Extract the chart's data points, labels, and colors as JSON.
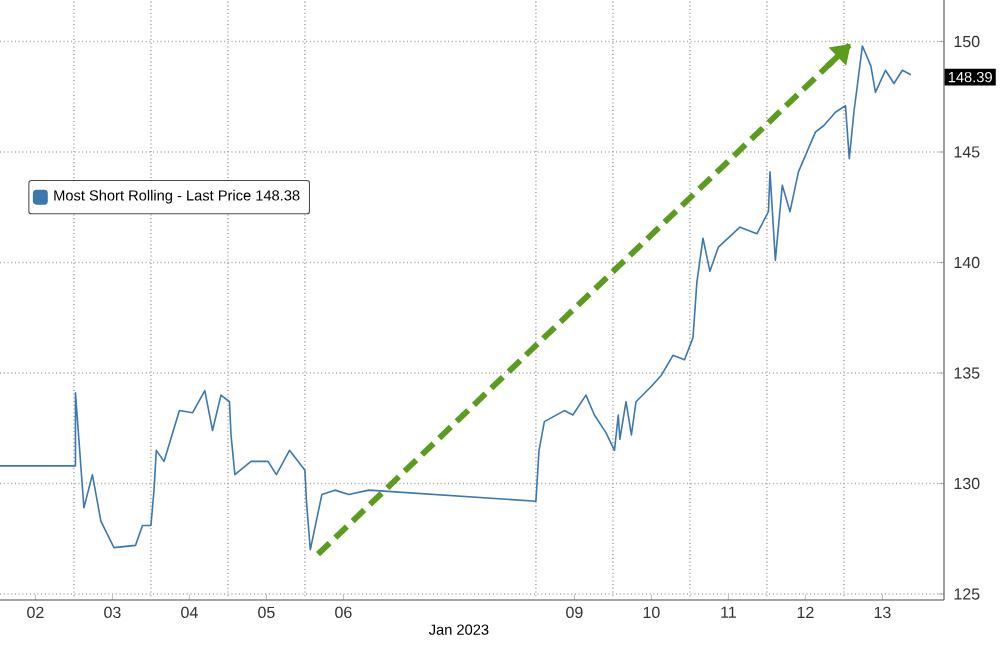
{
  "chart_data": {
    "type": "line",
    "xlabel": "Jan 2023",
    "xlim": [
      "2023-01-02T00:58",
      "2023-01-14T07:12"
    ],
    "ylim": [
      124.73,
      151.88
    ],
    "xticks": [
      {
        "value": "2023-01-02T12:00",
        "label": "02"
      },
      {
        "value": "2023-01-03T12:00",
        "label": "03"
      },
      {
        "value": "2023-01-04T12:00",
        "label": "04"
      },
      {
        "value": "2023-01-05T12:00",
        "label": "05"
      },
      {
        "value": "2023-01-06T12:00",
        "label": "06"
      },
      {
        "value": "2023-01-09T12:00",
        "label": "09"
      },
      {
        "value": "2023-01-10T12:00",
        "label": "10"
      },
      {
        "value": "2023-01-11T12:00",
        "label": "11"
      },
      {
        "value": "2023-01-12T12:00",
        "label": "12"
      },
      {
        "value": "2023-01-13T12:00",
        "label": "13"
      },
      {
        "value": "2023-01-03",
        "label": null
      },
      {
        "value": "2023-01-04",
        "label": null
      },
      {
        "value": "2023-01-05",
        "label": null
      },
      {
        "value": "2023-01-06",
        "label": null
      },
      {
        "value": "2023-01-09",
        "label": null
      },
      {
        "value": "2023-01-10",
        "label": null
      },
      {
        "value": "2023-01-11",
        "label": null
      },
      {
        "value": "2023-01-12",
        "label": null
      },
      {
        "value": "2023-01-13",
        "label": null
      }
    ],
    "yticks": [
      125,
      130,
      135,
      140,
      145,
      150
    ],
    "grid": true,
    "legend": "top left",
    "marker": "none",
    "series": [
      {
        "name": "Most Short Rolling - Last Price 148.38",
        "color": "#3a78ad",
        "line_style": "solid",
        "x": [
          "2023-01-02T00:58",
          "2023-01-03T00:29",
          "2023-01-03T00:29",
          "2023-01-03T03:07",
          "2023-01-03T05:46",
          "2023-01-03T08:24",
          "2023-01-03T12:29",
          "2023-01-03T19:12",
          "2023-01-03T21:22",
          "2023-01-04T00:00",
          "2023-01-04T00:58",
          "2023-01-04T01:41",
          "2023-01-04T04:05",
          "2023-01-04T08:53",
          "2023-01-04T12:58",
          "2023-01-04T16:48",
          "2023-01-04T19:12",
          "2023-01-04T21:50",
          "2023-01-05T00:29",
          "2023-01-05T00:58",
          "2023-01-05T02:10",
          "2023-01-05T07:12",
          "2023-01-05T12:29",
          "2023-01-05T15:07",
          "2023-01-05T19:12",
          "2023-01-06T00:00",
          "2023-01-06T00:29",
          "2023-01-06T01:41",
          "2023-01-06T05:17",
          "2023-01-06T09:22",
          "2023-01-06T13:41",
          "2023-01-06T19:55",
          "2023-01-09T00:00",
          "2023-01-09T00:58",
          "2023-01-09T02:38",
          "2023-01-09T08:53",
          "2023-01-09T11:31",
          "2023-01-09T15:36",
          "2023-01-09T18:14",
          "2023-01-09T21:50",
          "2023-01-10T00:29",
          "2023-01-10T01:41",
          "2023-01-10T02:10",
          "2023-01-10T04:05",
          "2023-01-10T05:46",
          "2023-01-10T07:12",
          "2023-01-10T12:00",
          "2023-01-10T15:07",
          "2023-01-10T18:43",
          "2023-01-10T22:19",
          "2023-01-11T00:58",
          "2023-01-11T02:10",
          "2023-01-11T04:05",
          "2023-01-11T06:14",
          "2023-01-11T08:53",
          "2023-01-11T15:36",
          "2023-01-11T20:53",
          "2023-01-12T00:29",
          "2023-01-12T00:58",
          "2023-01-12T02:38",
          "2023-01-12T04:48",
          "2023-01-12T07:12",
          "2023-01-12T09:50",
          "2023-01-12T15:07",
          "2023-01-12T17:46",
          "2023-01-12T21:22",
          "2023-01-13T00:29",
          "2023-01-13T01:41",
          "2023-01-13T03:07",
          "2023-01-13T05:46",
          "2023-01-13T08:24",
          "2023-01-13T09:50",
          "2023-01-13T12:58",
          "2023-01-13T15:36",
          "2023-01-13T18:14",
          "2023-01-13T20:53"
        ],
        "values": [
          130.8,
          130.8,
          134.1,
          128.9,
          130.4,
          128.3,
          127.1,
          127.2,
          128.1,
          128.1,
          129.7,
          131.5,
          131.0,
          133.3,
          133.2,
          134.2,
          132.4,
          134.0,
          133.7,
          132.2,
          130.4,
          131.0,
          131.0,
          130.4,
          131.5,
          130.6,
          129.2,
          127.0,
          129.5,
          129.7,
          129.5,
          129.7,
          129.2,
          131.5,
          132.8,
          133.3,
          133.1,
          134.0,
          133.1,
          132.3,
          131.5,
          133.1,
          132.0,
          133.7,
          132.2,
          133.7,
          134.4,
          134.9,
          135.8,
          135.6,
          136.6,
          139.1,
          141.1,
          139.6,
          140.7,
          141.6,
          141.3,
          142.3,
          144.1,
          140.1,
          143.5,
          142.3,
          144.1,
          145.9,
          146.2,
          146.8,
          147.1,
          144.7,
          146.8,
          149.8,
          148.9,
          147.7,
          148.7,
          148.1,
          148.7,
          148.5
        ]
      },
      {
        "type": "line",
        "color": "#5b9b1d",
        "line_style": "dashed",
        "x": [
          "2023-01-06T04:05",
          "2023-01-13T02:10"
        ],
        "values": [
          126.8,
          149.9
        ]
      }
    ],
    "annotations": [
      {
        "text": "148.39",
        "y": 148.39
      }
    ]
  }
}
